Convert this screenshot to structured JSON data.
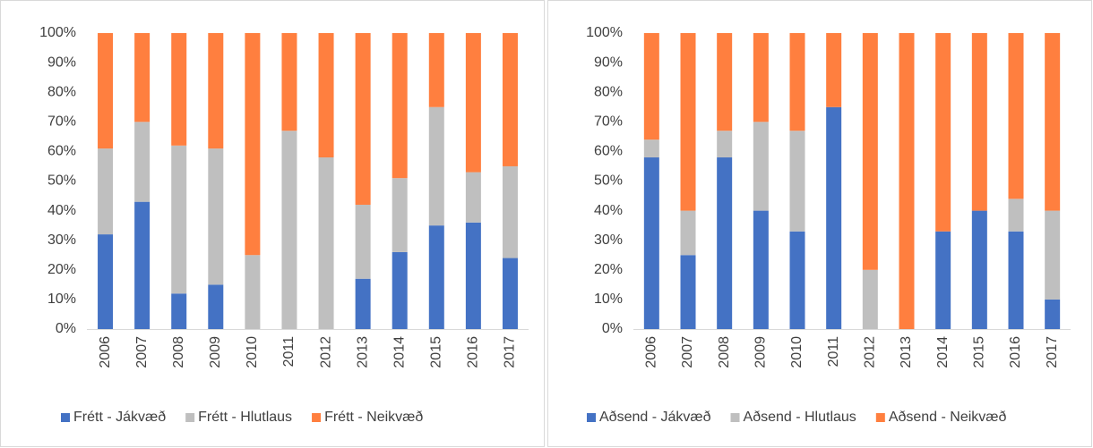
{
  "chart_data": [
    {
      "type": "bar",
      "stacked": true,
      "grid": false,
      "legend": "bottom",
      "categories": [
        "2006",
        "2007",
        "2008",
        "2009",
        "2010",
        "2011",
        "2012",
        "2013",
        "2014",
        "2015",
        "2016",
        "2017"
      ],
      "series": [
        {
          "name": "Frétt - Jákvæð",
          "color": "#4472c4",
          "values": [
            32,
            43,
            12,
            15,
            0,
            0,
            0,
            17,
            26,
            35,
            36,
            24
          ]
        },
        {
          "name": "Frétt - Hlutlaus",
          "color": "#bfbfbf",
          "values": [
            29,
            27,
            50,
            46,
            25,
            67,
            58,
            25,
            25,
            40,
            17,
            31
          ]
        },
        {
          "name": "Frétt - Neikvæð",
          "color": "#ff7f3f",
          "values": [
            39,
            30,
            38,
            39,
            75,
            33,
            42,
            58,
            49,
            25,
            47,
            45
          ]
        }
      ],
      "ylim": [
        0,
        100
      ],
      "yticks": [
        {
          "value": 0,
          "label": "0%"
        },
        {
          "value": 10,
          "label": "10%"
        },
        {
          "value": 20,
          "label": "20%"
        },
        {
          "value": 30,
          "label": "30%"
        },
        {
          "value": 40,
          "label": "40%"
        },
        {
          "value": 50,
          "label": "50%"
        },
        {
          "value": 60,
          "label": "60%"
        },
        {
          "value": 70,
          "label": "70%"
        },
        {
          "value": 80,
          "label": "80%"
        },
        {
          "value": 90,
          "label": "90%"
        },
        {
          "value": 100,
          "label": "100%"
        }
      ]
    },
    {
      "type": "bar",
      "stacked": true,
      "grid": false,
      "legend": "bottom",
      "categories": [
        "2006",
        "2007",
        "2008",
        "2009",
        "2010",
        "2011",
        "2012",
        "2013",
        "2014",
        "2015",
        "2016",
        "2017"
      ],
      "series": [
        {
          "name": "Aðsend - Jákvæð",
          "color": "#4472c4",
          "values": [
            58,
            25,
            58,
            40,
            33,
            75,
            0,
            0,
            33,
            40,
            33,
            10
          ]
        },
        {
          "name": "Aðsend - Hlutlaus",
          "color": "#bfbfbf",
          "values": [
            6,
            15,
            9,
            30,
            34,
            0,
            20,
            0,
            0,
            0,
            11,
            30
          ]
        },
        {
          "name": "Aðsend - Neikvæð",
          "color": "#ff7f3f",
          "values": [
            36,
            60,
            33,
            30,
            33,
            25,
            80,
            100,
            67,
            60,
            56,
            60
          ]
        }
      ],
      "ylim": [
        0,
        100
      ],
      "yticks": [
        {
          "value": 0,
          "label": "0%"
        },
        {
          "value": 10,
          "label": "10%"
        },
        {
          "value": 20,
          "label": "20%"
        },
        {
          "value": 30,
          "label": "30%"
        },
        {
          "value": 40,
          "label": "40%"
        },
        {
          "value": 50,
          "label": "50%"
        },
        {
          "value": 60,
          "label": "60%"
        },
        {
          "value": 70,
          "label": "70%"
        },
        {
          "value": 80,
          "label": "80%"
        },
        {
          "value": 90,
          "label": "90%"
        },
        {
          "value": 100,
          "label": "100%"
        }
      ]
    }
  ]
}
